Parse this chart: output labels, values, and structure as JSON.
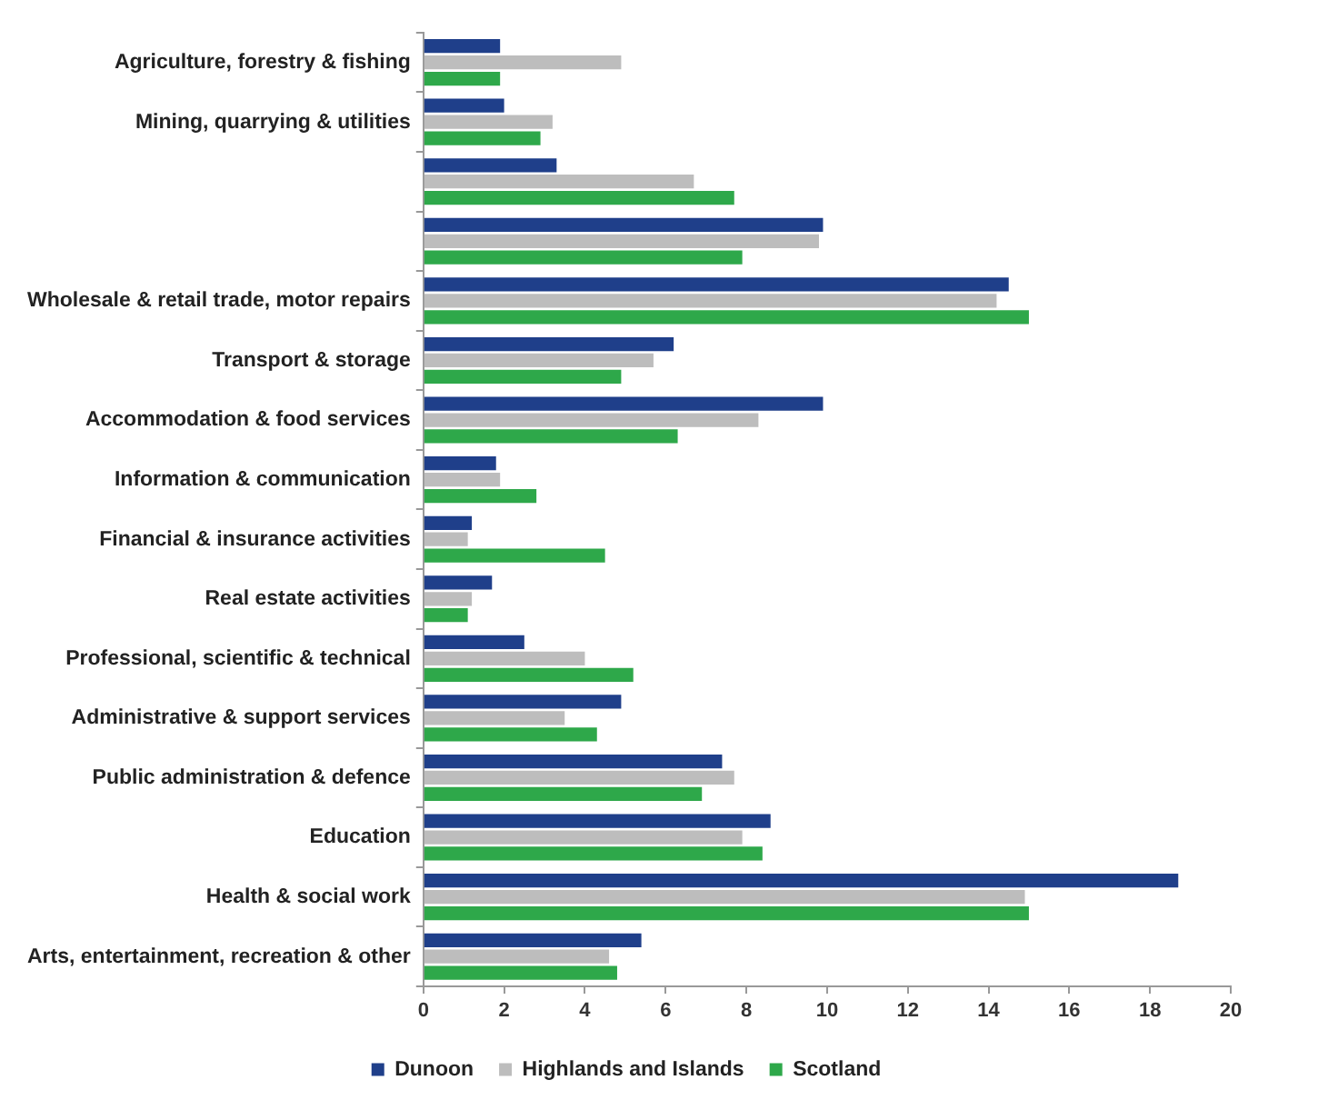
{
  "chart_data": {
    "type": "bar",
    "orientation": "horizontal",
    "categories": [
      "Agriculture, forestry & fishing",
      "Mining, quarrying & utilities",
      null,
      null,
      "Wholesale & retail trade, motor repairs",
      "Transport & storage",
      "Accommodation & food services",
      "Information & communication",
      "Financial & insurance activities",
      "Real estate activities",
      "Professional, scientific & technical",
      "Administrative & support services",
      "Public administration & defence",
      "Education",
      "Health & social work",
      "Arts, entertainment, recreation & other"
    ],
    "series": [
      {
        "name": "Dunoon",
        "color": "#1f3f8a",
        "values": [
          1.9,
          2.0,
          3.3,
          9.9,
          14.5,
          6.2,
          9.9,
          1.8,
          1.2,
          1.7,
          2.5,
          4.9,
          7.4,
          8.6,
          18.7,
          5.4
        ]
      },
      {
        "name": "Highlands and Islands",
        "color": "#bdbdbd",
        "values": [
          4.9,
          3.2,
          6.7,
          9.8,
          14.2,
          5.7,
          8.3,
          1.9,
          1.1,
          1.2,
          4.0,
          3.5,
          7.7,
          7.9,
          14.9,
          4.6
        ]
      },
      {
        "name": "Scotland",
        "color": "#2ea84a",
        "values": [
          1.9,
          2.9,
          7.7,
          7.9,
          15.0,
          4.9,
          6.3,
          2.8,
          4.5,
          1.1,
          5.2,
          4.3,
          6.9,
          8.4,
          15.0,
          4.8
        ]
      }
    ],
    "xlim": [
      0,
      20
    ],
    "xticks": [
      0,
      2,
      4,
      6,
      8,
      10,
      12,
      14,
      16,
      18,
      20
    ],
    "grid": false,
    "legend": "bottom"
  }
}
